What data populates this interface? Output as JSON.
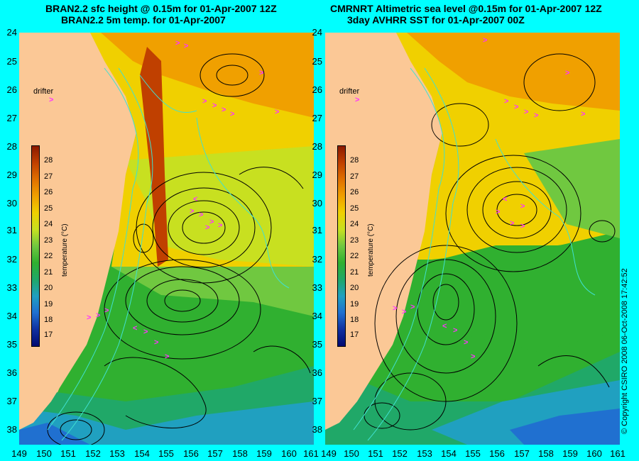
{
  "titles": {
    "left_line1": "BRAN2.2 sfc height @ 0.15m for 01-Apr-2007 12Z",
    "left_line2": "BRAN2.2 5m temp. for 01-Apr-2007",
    "right_line1": "CMRNRT Altimetric sea level  @0.15m  for 01-Apr-2007 12Z",
    "right_line2": "3day AVHRR SST for 01-Apr-2007 00Z"
  },
  "axes": {
    "latitudes": [
      "24",
      "25",
      "26",
      "27",
      "28",
      "29",
      "30",
      "31",
      "32",
      "33",
      "34",
      "35",
      "36",
      "37",
      "38"
    ],
    "longitudes": [
      "149",
      "150",
      "151",
      "152",
      "153",
      "154",
      "155",
      "156",
      "157",
      "158",
      "159",
      "160",
      "161"
    ]
  },
  "legend": {
    "drifter_label": "drifter",
    "drifter_symbol": ">",
    "colorbar_title": "temperature (°C)",
    "colorbar_ticks": [
      "28",
      "27",
      "26",
      "25",
      "24",
      "23",
      "22",
      "21",
      "20",
      "19",
      "18",
      "17"
    ],
    "colorbar_colors": [
      "#8b1a00",
      "#c04000",
      "#e07000",
      "#f0a000",
      "#f0d000",
      "#c8e020",
      "#70c840",
      "#30b030",
      "#20a868",
      "#20a0c0",
      "#2070d0",
      "#1030a0",
      "#000a70"
    ]
  },
  "copyright": "© Copyright CSIRO 2008   06-Oct-2008 17:42:52",
  "colors": {
    "background": "#00ffff",
    "land": "#fbc896",
    "drifter": "#ff33ff",
    "contour": "#000000",
    "isobath": "#40e0d0"
  }
}
